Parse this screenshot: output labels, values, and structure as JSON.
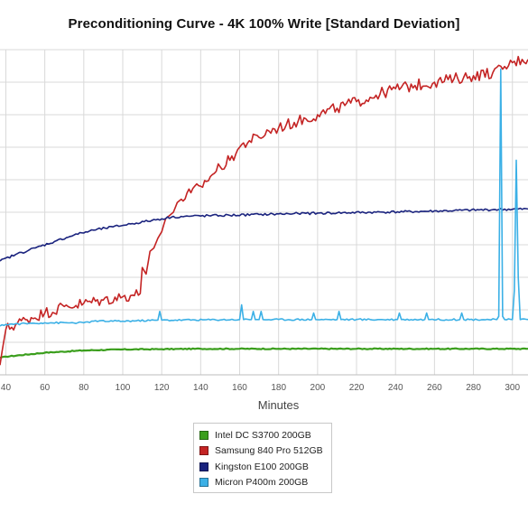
{
  "chart_data": {
    "type": "line",
    "title": "Preconditioning Curve - 4K 100% Write [Standard Deviation]",
    "xlabel": "Minutes",
    "ylabel": "",
    "xlim": [
      37,
      308
    ],
    "ylim": [
      0,
      100
    ],
    "x_ticks": [
      40,
      60,
      80,
      100,
      120,
      140,
      160,
      180,
      200,
      220,
      240,
      260,
      280,
      300
    ],
    "grid": true,
    "legend_position": "bottom-center",
    "series": [
      {
        "name": "Intel DC S3700 200GB",
        "color": "#3a9e1c",
        "points": [
          [
            37,
            5.2
          ],
          [
            40,
            5.6
          ],
          [
            60,
            6.8
          ],
          [
            80,
            7.5
          ],
          [
            100,
            7.8
          ],
          [
            120,
            7.9
          ],
          [
            140,
            8.0
          ],
          [
            160,
            8.0
          ],
          [
            180,
            8.0
          ],
          [
            200,
            8.0
          ],
          [
            220,
            8.0
          ],
          [
            240,
            8.0
          ],
          [
            260,
            8.0
          ],
          [
            280,
            8.0
          ],
          [
            300,
            8.0
          ],
          [
            308,
            8.0
          ]
        ]
      },
      {
        "name": "Samsung 840 Pro 512GB",
        "color": "#c42424",
        "points": [
          [
            37,
            3
          ],
          [
            38,
            7
          ],
          [
            40,
            14
          ],
          [
            50,
            17
          ],
          [
            60,
            19
          ],
          [
            70,
            21
          ],
          [
            80,
            22
          ],
          [
            90,
            23
          ],
          [
            100,
            24
          ],
          [
            105,
            24.5
          ],
          [
            109,
            25
          ],
          [
            110,
            33
          ],
          [
            112,
            31
          ],
          [
            114,
            38
          ],
          [
            116,
            39
          ],
          [
            118,
            42
          ],
          [
            120,
            44
          ],
          [
            122,
            48
          ],
          [
            124,
            49
          ],
          [
            126,
            50
          ],
          [
            128,
            53
          ],
          [
            130,
            54
          ],
          [
            135,
            56
          ],
          [
            140,
            58
          ],
          [
            145,
            61
          ],
          [
            150,
            64
          ],
          [
            155,
            66
          ],
          [
            160,
            70
          ],
          [
            165,
            72
          ],
          [
            170,
            73
          ],
          [
            175,
            75
          ],
          [
            180,
            76
          ],
          [
            190,
            78
          ],
          [
            200,
            80
          ],
          [
            210,
            82
          ],
          [
            220,
            84
          ],
          [
            230,
            86
          ],
          [
            240,
            88
          ],
          [
            250,
            89
          ],
          [
            260,
            90
          ],
          [
            270,
            91
          ],
          [
            280,
            92
          ],
          [
            290,
            93
          ],
          [
            295,
            94
          ],
          [
            300,
            96
          ],
          [
            305,
            97
          ],
          [
            308,
            97
          ]
        ]
      },
      {
        "name": "Kingston E100 200GB",
        "color": "#1a237e",
        "points": [
          [
            37,
            35
          ],
          [
            45,
            37
          ],
          [
            55,
            39
          ],
          [
            65,
            41
          ],
          [
            75,
            43
          ],
          [
            85,
            44.5
          ],
          [
            95,
            45.5
          ],
          [
            105,
            46.5
          ],
          [
            115,
            47.5
          ],
          [
            125,
            48.5
          ],
          [
            135,
            48.8
          ],
          [
            150,
            49
          ],
          [
            170,
            49.3
          ],
          [
            190,
            49.6
          ],
          [
            210,
            49.8
          ],
          [
            230,
            50
          ],
          [
            250,
            50.2
          ],
          [
            270,
            50.5
          ],
          [
            290,
            50.8
          ],
          [
            308,
            51
          ]
        ]
      },
      {
        "name": "Micron P400m 200GB",
        "color": "#3bb0e6",
        "points": [
          [
            37,
            15
          ],
          [
            40,
            15.5
          ],
          [
            60,
            16
          ],
          [
            80,
            16
          ],
          [
            85,
            16.5
          ],
          [
            100,
            16.5
          ],
          [
            118,
            16.8
          ],
          [
            119,
            19.5
          ],
          [
            120,
            16.8
          ],
          [
            160,
            17
          ],
          [
            161,
            21.5
          ],
          [
            162,
            17
          ],
          [
            166,
            17
          ],
          [
            167,
            19.5
          ],
          [
            168,
            17
          ],
          [
            170,
            17
          ],
          [
            171,
            19.5
          ],
          [
            172,
            17
          ],
          [
            197,
            17
          ],
          [
            198,
            19
          ],
          [
            199,
            17
          ],
          [
            210,
            17
          ],
          [
            211,
            19.5
          ],
          [
            212,
            17
          ],
          [
            241,
            17
          ],
          [
            242,
            19
          ],
          [
            243,
            17
          ],
          [
            255,
            17
          ],
          [
            256,
            19
          ],
          [
            257,
            17
          ],
          [
            273,
            17
          ],
          [
            274,
            19
          ],
          [
            275,
            17
          ],
          [
            292,
            17
          ],
          [
            293,
            18
          ],
          [
            294,
            94
          ],
          [
            295,
            18
          ],
          [
            296,
            17
          ],
          [
            300,
            17
          ],
          [
            301,
            26
          ],
          [
            302,
            66
          ],
          [
            303,
            30
          ],
          [
            304,
            17
          ],
          [
            308,
            17
          ]
        ]
      }
    ]
  }
}
